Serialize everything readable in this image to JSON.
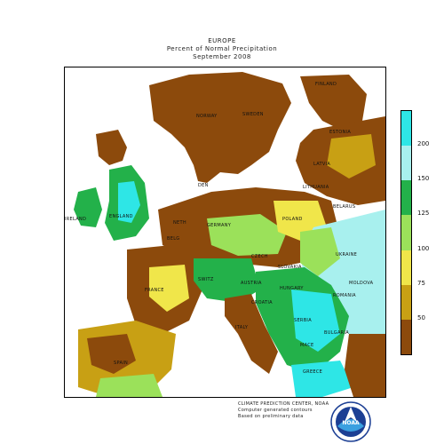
{
  "title": {
    "line1": "EUROPE",
    "line2": "Percent of Normal Precipitation",
    "line3": "September 2008"
  },
  "legend": {
    "ticks": [
      "200",
      "150",
      "125",
      "100",
      "75",
      "50"
    ],
    "colors": [
      "#2ee6e6",
      "#a8f0ee",
      "#23b14a",
      "#9be15a",
      "#f0e64a",
      "#c8a014",
      "#8c4a0c"
    ]
  },
  "palette": {
    "sea": "#ffffff",
    "dry": "#8c4a0c",
    "wet": "#a8f0ee",
    "normal": "#9be15a",
    "green": "#23b14a",
    "yellow": "#f0e64a",
    "ochre": "#c8a014"
  },
  "countries": {
    "finland": "FINLAND",
    "norway": "NORWAY",
    "sweden": "SWEDEN",
    "estonia": "ESTONIA",
    "latvia": "LATVIA",
    "lithuania": "LITHUANIA",
    "belarus": "BELARUS",
    "ukraine": "UKRAINE",
    "ireland": "IRELAND",
    "england": "ENGLAND",
    "denmark": "DEN",
    "germany": "GERMANY",
    "poland": "POLAND",
    "czech": "CZECH",
    "austria": "AUSTRIA",
    "hungary": "HUNGARY",
    "romania": "ROMANIA",
    "bulgaria": "BULGARIA",
    "france": "FRANCE",
    "italy": "ITALY",
    "spain": "SPAIN",
    "greece": "GREECE",
    "serbia": "SERBIA",
    "slovakia": "SLOVAKIA",
    "netherlands": "NETH",
    "belgium": "BELG",
    "switzerland": "SWITZ",
    "macedonia": "MACE",
    "croatia": "CROATIA",
    "moldova": "MOLDOVA"
  },
  "credits": {
    "line1": "CLIMATE PREDICTION CENTER, NOAA",
    "line2": "Computer generated contours",
    "line3": "Based on preliminary data"
  },
  "logo": {
    "text": "NOAA"
  }
}
